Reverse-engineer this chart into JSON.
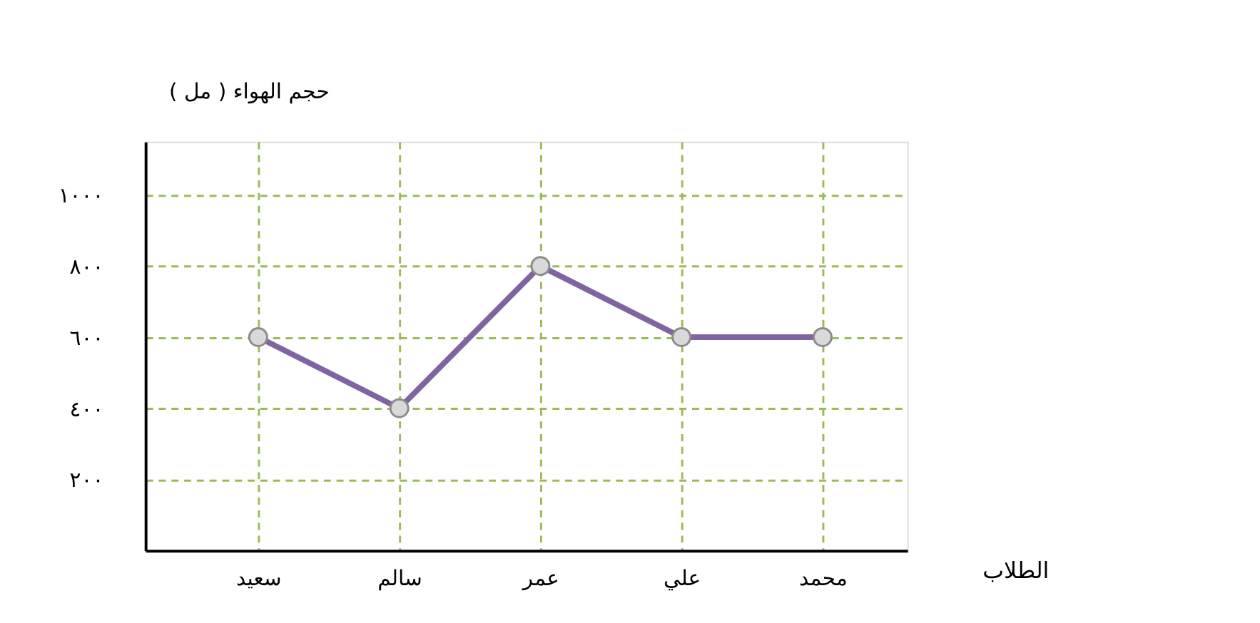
{
  "chart_data": {
    "type": "line",
    "xlabel": "الطلاب",
    "ylabel": "حجم الهواء ( مل )",
    "categories": [
      "سعيد",
      "سالم",
      "عمر",
      "علي",
      "محمد"
    ],
    "series": [
      {
        "color": "#8064a2",
        "values": [
          600,
          400,
          800,
          600,
          600
        ]
      }
    ],
    "ylim": [
      0,
      1150
    ],
    "yticks": [
      {
        "value": 200,
        "label": "٢٠٠"
      },
      {
        "value": 400,
        "label": "٤٠٠"
      },
      {
        "value": 600,
        "label": "٦٠٠"
      },
      {
        "value": 800,
        "label": "٨٠٠"
      },
      {
        "value": 1000,
        "label": "١٠٠٠"
      }
    ],
    "grid": true,
    "marker": "circle",
    "line_style": "solid"
  }
}
